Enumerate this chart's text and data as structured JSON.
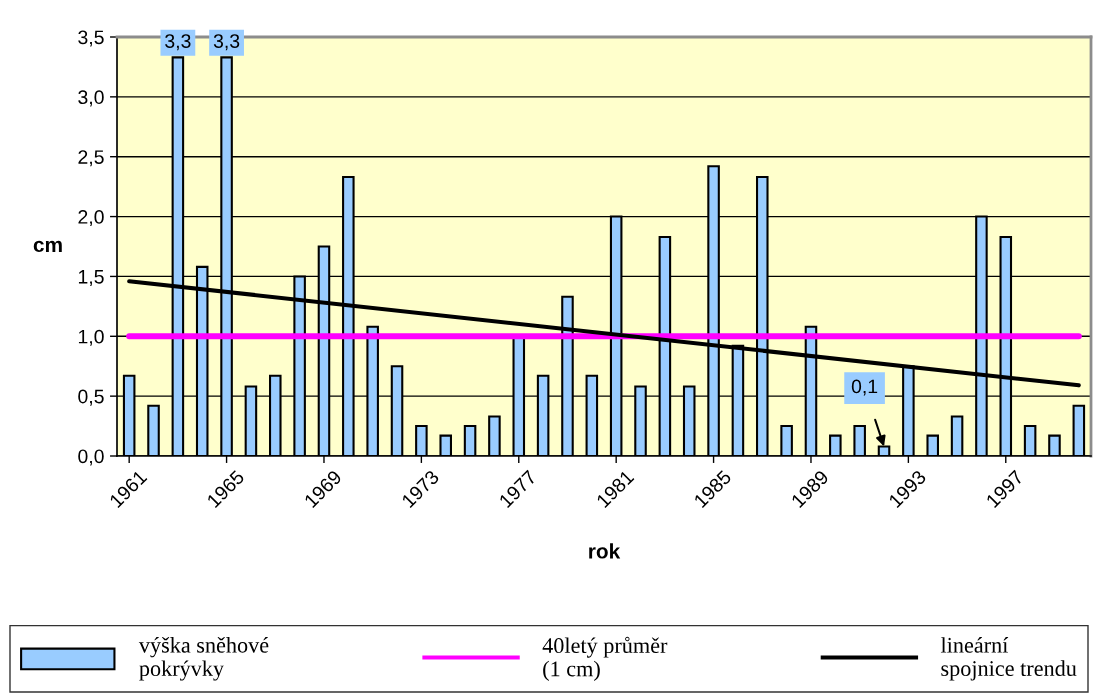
{
  "chart_data": {
    "type": "bar",
    "xlabel": "rok",
    "ylabel": "cm",
    "x": [
      1961,
      1962,
      1963,
      1964,
      1965,
      1966,
      1967,
      1968,
      1969,
      1970,
      1971,
      1972,
      1973,
      1974,
      1975,
      1976,
      1977,
      1978,
      1979,
      1980,
      1981,
      1982,
      1983,
      1984,
      1985,
      1986,
      1987,
      1988,
      1989,
      1990,
      1991,
      1992,
      1993,
      1994,
      1995,
      1996,
      1997,
      1998,
      1999,
      2000
    ],
    "series": [
      {
        "name": "výška sněhové\npokrývky",
        "color": "#99ccff",
        "values": [
          0.67,
          0.42,
          3.33,
          1.58,
          3.33,
          0.58,
          0.67,
          1.5,
          1.75,
          2.33,
          1.08,
          0.75,
          0.25,
          0.17,
          0.25,
          0.33,
          1.0,
          0.67,
          1.33,
          0.67,
          2.0,
          0.58,
          1.83,
          0.58,
          2.42,
          0.92,
          2.33,
          0.25,
          1.08,
          0.17,
          0.25,
          0.08,
          0.75,
          0.17,
          0.33,
          2.0,
          1.83,
          0.25,
          0.17,
          0.42
        ],
        "value_labels": [
          null,
          null,
          "3,3",
          null,
          "3,3",
          null,
          null,
          null,
          null,
          null,
          null,
          null,
          null,
          null,
          null,
          null,
          null,
          null,
          null,
          null,
          null,
          null,
          null,
          null,
          null,
          null,
          null,
          null,
          null,
          null,
          null,
          null,
          null,
          null,
          null,
          null,
          null,
          null,
          null,
          null
        ]
      },
      {
        "name": "lineární\nspojnice trendu",
        "type": "line",
        "color": "#000000",
        "x": [
          1961,
          2000
        ],
        "values": [
          1.46,
          0.59
        ]
      }
    ],
    "ref_lines": [
      {
        "axis": "y",
        "value": 1.0,
        "label": "40letý průměr\n(1 cm)",
        "color": "#ff00ff"
      }
    ],
    "annotations": [
      {
        "text": "0,1",
        "x": 1992,
        "y": 0.08
      }
    ],
    "xlim": [
      1960.5,
      2000.5
    ],
    "xticks": [
      1961,
      1965,
      1969,
      1973,
      1977,
      1981,
      1985,
      1989,
      1993,
      1997
    ],
    "ylim": [
      0,
      3.5
    ],
    "yticks": [
      {
        "value": 0,
        "label": "0,0"
      },
      {
        "value": 0.5,
        "label": "0,5"
      },
      {
        "value": 1.0,
        "label": "1,0"
      },
      {
        "value": 1.5,
        "label": "1,5"
      },
      {
        "value": 2.0,
        "label": "2,0"
      },
      {
        "value": 2.5,
        "label": "2,5"
      },
      {
        "value": 3.0,
        "label": "3,0"
      },
      {
        "value": 3.5,
        "label": "3,5"
      }
    ],
    "grid": "y",
    "legend": "bottom"
  }
}
